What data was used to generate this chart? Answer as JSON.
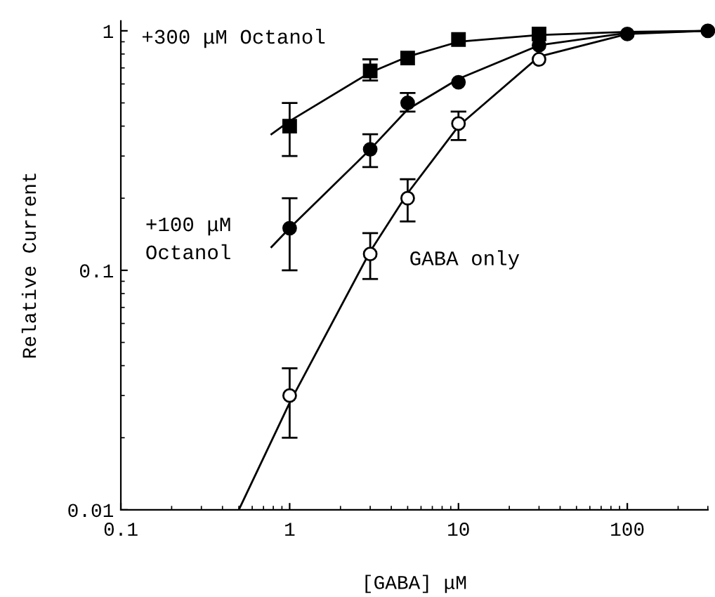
{
  "chart_data": {
    "type": "scatter",
    "xlabel": "[GABA] μM",
    "ylabel": "Relative Current",
    "log": "xy",
    "xlim": [
      0.1,
      300
    ],
    "ylim": [
      0.01,
      1.1
    ],
    "xticks": [
      0.1,
      1,
      10,
      100
    ],
    "yticks": [
      0.01,
      0.1,
      1
    ],
    "grid": false,
    "legend": false,
    "series": [
      {
        "name": "+300 μM Octanol",
        "marker": "square",
        "color": "#000000",
        "x": [
          1,
          3,
          5,
          10,
          30
        ],
        "values": [
          0.4,
          0.68,
          0.77,
          0.92,
          0.97
        ],
        "errors": [
          [
            0.3,
            0.5
          ],
          [
            0.62,
            0.76
          ],
          null,
          null,
          null
        ]
      },
      {
        "name": "+100 μM\nOctanol",
        "marker": "circle",
        "color": "#000000",
        "x": [
          1,
          3,
          5,
          10,
          30,
          100,
          300
        ],
        "values": [
          0.15,
          0.32,
          0.5,
          0.61,
          0.87,
          0.97,
          1.0
        ],
        "errors": [
          [
            0.1,
            0.2
          ],
          [
            0.27,
            0.37
          ],
          [
            0.46,
            0.55
          ],
          null,
          null,
          null,
          null
        ]
      },
      {
        "name": "GABA only",
        "marker": "circle",
        "color": "#ffffff",
        "x": [
          1,
          3,
          5,
          10,
          30
        ],
        "values": [
          0.03,
          0.117,
          0.2,
          0.41,
          0.76
        ],
        "errors": [
          [
            0.02,
            0.039
          ],
          [
            0.092,
            0.143
          ],
          [
            0.16,
            0.24
          ],
          [
            0.35,
            0.46
          ],
          null
        ]
      },
      {
        "type": "line",
        "color": "#000000",
        "x": [
          0.78,
          1,
          3,
          5,
          10,
          30,
          100,
          300
        ],
        "values": [
          0.37,
          0.42,
          0.67,
          0.78,
          0.9,
          0.96,
          0.99,
          1.0
        ]
      },
      {
        "type": "line",
        "color": "#000000",
        "x": [
          0.78,
          1,
          3,
          5,
          10,
          30,
          100,
          300
        ],
        "values": [
          0.125,
          0.15,
          0.32,
          0.47,
          0.63,
          0.87,
          0.98,
          1.0
        ]
      },
      {
        "type": "line",
        "color": "#000000",
        "x": [
          0.5,
          1,
          3,
          5,
          10,
          30,
          100,
          300
        ],
        "values": [
          0.01,
          0.028,
          0.12,
          0.21,
          0.4,
          0.78,
          0.97,
          1.0
        ]
      }
    ]
  }
}
